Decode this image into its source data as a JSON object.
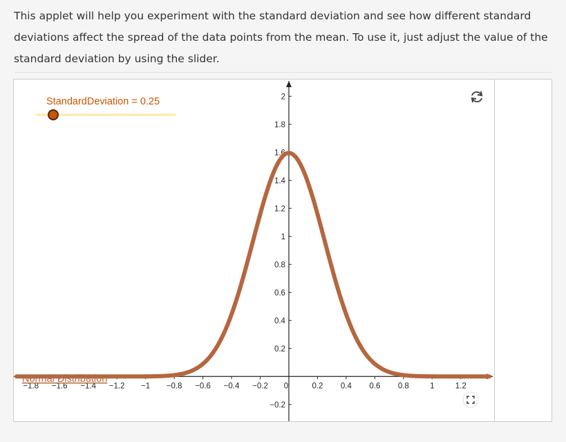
{
  "intro": {
    "lines": [
      "This applet will help you experiment with the standard deviation and see how different standard",
      "deviations affect the spread of the data points from the mean. To use it, just adjust the value of the",
      "standard deviation by using the slider."
    ]
  },
  "applet": {
    "slider": {
      "label": "StandardDeviation = 0.25",
      "value": 0.25,
      "min": 0.25,
      "max": 2,
      "track_color": "#ffe9a8",
      "handle_color": "#cc5500"
    },
    "curve_label": "Normal Distribution",
    "curve_color": "#b5673f",
    "icons": [
      "reset-icon",
      "fullscreen-icon"
    ]
  },
  "chart_data": {
    "type": "line",
    "series": [
      {
        "function": "normal pdf, mean 0, standard deviation 0.25",
        "mean": 0,
        "sd": 0.25
      }
    ],
    "x_ticks": [
      "−1.8",
      "−1.6",
      "−1.4",
      "−1.2",
      "−1",
      "−0.8",
      "−0.6",
      "−0.4",
      "−0.2",
      "0",
      "0.2",
      "0.4",
      "0.6",
      "0.8",
      "1",
      "1.2"
    ],
    "y_ticks": [
      "−0.2",
      "0.2",
      "0.4",
      "0.6",
      "0.8",
      "1",
      "1.2",
      "1.4",
      "1.6",
      "1.8",
      "2"
    ],
    "xlim": [
      -1.9,
      1.5
    ],
    "ylim": [
      -0.3,
      2.1
    ],
    "grid": false
  }
}
